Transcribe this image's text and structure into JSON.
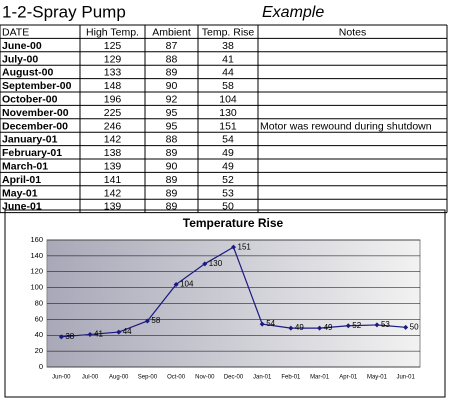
{
  "header": {
    "title": "1-2-Spray Pump",
    "example": "Example"
  },
  "table": {
    "columns": [
      "DATE",
      "High Temp.",
      "Ambient",
      "Temp. Rise",
      "Notes"
    ],
    "rows": [
      {
        "date": "June-00",
        "high": 125,
        "ambient": 87,
        "rise": 38
      },
      {
        "date": "July-00",
        "high": 129,
        "ambient": 88,
        "rise": 41
      },
      {
        "date": "August-00",
        "high": 133,
        "ambient": 89,
        "rise": 44
      },
      {
        "date": "September-00",
        "high": 148,
        "ambient": 90,
        "rise": 58
      },
      {
        "date": "October-00",
        "high": 196,
        "ambient": 92,
        "rise": 104
      },
      {
        "date": "November-00",
        "high": 225,
        "ambient": 95,
        "rise": 130
      },
      {
        "date": "December-00",
        "high": 246,
        "ambient": 95,
        "rise": 151,
        "note": "Motor was rewound during shutdown"
      },
      {
        "date": "January-01",
        "high": 142,
        "ambient": 88,
        "rise": 54
      },
      {
        "date": "February-01",
        "high": 138,
        "ambient": 89,
        "rise": 49
      },
      {
        "date": "March-01",
        "high": 139,
        "ambient": 90,
        "rise": 49
      },
      {
        "date": "April-01",
        "high": 141,
        "ambient": 89,
        "rise": 52
      },
      {
        "date": "May-01",
        "high": 142,
        "ambient": 89,
        "rise": 53
      },
      {
        "date": "June-01",
        "high": 139,
        "ambient": 89,
        "rise": 50
      }
    ]
  },
  "chart_data": {
    "type": "line",
    "title": "Temperature Rise",
    "categories": [
      "Jun-00",
      "Jul-00",
      "Aug-00",
      "Sep-00",
      "Oct-00",
      "Nov-00",
      "Dec-00",
      "Jan-01",
      "Feb-01",
      "Mar-01",
      "Apr-01",
      "May-01",
      "Jun-01"
    ],
    "series": [
      {
        "color": "#1a1a80",
        "values": [
          38,
          41,
          44,
          58,
          104,
          130,
          151,
          54,
          49,
          49,
          52,
          53,
          50
        ]
      }
    ],
    "ylim": [
      0,
      160
    ],
    "yticks": [
      0,
      20,
      40,
      60,
      80,
      100,
      120,
      140,
      160
    ],
    "grid": true
  }
}
